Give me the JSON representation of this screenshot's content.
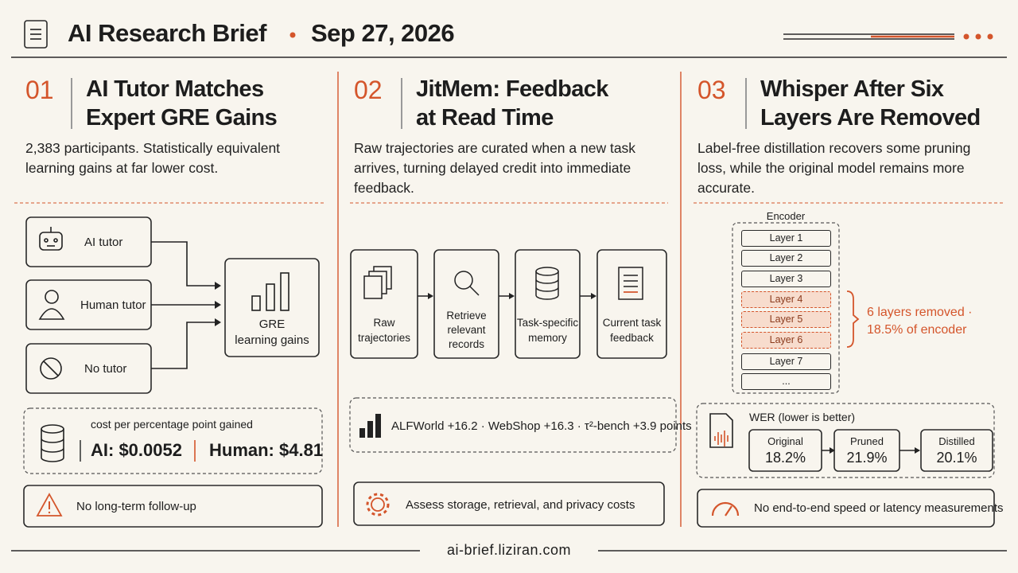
{
  "header": {
    "title": "AI Research Brief",
    "date": "Sep 27, 2026"
  },
  "columns": [
    {
      "number": "01",
      "title": [
        "AI Tutor Matches",
        "Expert GRE Gains"
      ],
      "description": "2,383 participants. Statistically equivalent learning gains at far lower cost.",
      "inputs": [
        "AI tutor",
        "Human tutor",
        "No tutor"
      ],
      "target": [
        "GRE",
        "learning gains"
      ],
      "cost": {
        "label": "cost per percentage point gained",
        "ai": "AI: $0.0052",
        "human": "Human: $4.81"
      },
      "note": "No long-term follow-up"
    },
    {
      "number": "02",
      "title": [
        "JitMem: Feedback",
        "at Read Time"
      ],
      "description": "Raw trajectories are curated when a new task arrives, turning delayed credit into immediate feedback.",
      "steps": [
        [
          "Raw",
          "trajectories"
        ],
        [
          "Retrieve",
          "relevant",
          "records"
        ],
        [
          "Task-specific",
          "memory"
        ],
        [
          "Current task",
          "feedback"
        ]
      ],
      "results": "ALFWorld +16.2 · WebShop +16.3 · τ²-bench +3.9 points",
      "note": "Assess storage, retrieval, and privacy costs"
    },
    {
      "number": "03",
      "title": [
        "Whisper After Six",
        "Layers Are Removed"
      ],
      "description": "Label-free distillation recovers some pruning loss, while the original model remains more accurate.",
      "encoder": "Encoder",
      "layers": [
        "Layer 1",
        "Layer 2",
        "Layer 3",
        "Layer 4",
        "Layer 5",
        "Layer 6",
        "Layer 7",
        "..."
      ],
      "removed": [
        "6 layers removed ·",
        "18.5% of encoder"
      ],
      "wer": {
        "label": "WER (lower is better)",
        "models": [
          {
            "name": "Original",
            "value": "18.2%"
          },
          {
            "name": "Pruned",
            "value": "21.9%"
          },
          {
            "name": "Distilled",
            "value": "20.1%"
          }
        ]
      },
      "note": "No end-to-end speed or latency measurements"
    }
  ],
  "footer": "ai-brief.liziran.com"
}
